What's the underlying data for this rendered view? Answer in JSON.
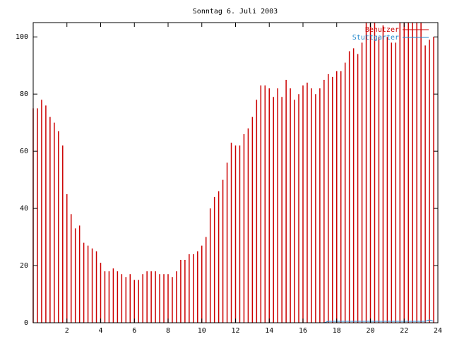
{
  "chart_data": {
    "type": "impulses",
    "title": "Sonntag 6. Juli 2003",
    "x": [
      0,
      0.25,
      0.5,
      0.75,
      1,
      1.25,
      1.5,
      1.75,
      2,
      2.25,
      2.5,
      2.75,
      3,
      3.25,
      3.5,
      3.75,
      4,
      4.25,
      4.5,
      4.75,
      5,
      5.25,
      5.5,
      5.75,
      6,
      6.25,
      6.5,
      6.75,
      7,
      7.25,
      7.5,
      7.75,
      8,
      8.25,
      8.5,
      8.75,
      9,
      9.25,
      9.5,
      9.75,
      10,
      10.25,
      10.5,
      10.75,
      11,
      11.25,
      11.5,
      11.75,
      12,
      12.25,
      12.5,
      12.75,
      13,
      13.25,
      13.5,
      13.75,
      14,
      14.25,
      14.5,
      14.75,
      15,
      15.25,
      15.5,
      15.75,
      16,
      16.25,
      16.5,
      16.75,
      17,
      17.25,
      17.5,
      17.75,
      18,
      18.25,
      18.5,
      18.75,
      19,
      19.25,
      19.5,
      19.75,
      20,
      20.25,
      20.5,
      20.75,
      21,
      21.25,
      21.5,
      21.75,
      22,
      22.25,
      22.5,
      22.75,
      23,
      23.25,
      23.5,
      23.75
    ],
    "series": [
      {
        "name": "Benutzer",
        "color": "#cc0000",
        "style": "impulses",
        "values": [
          75,
          75,
          78,
          76,
          72,
          70,
          67,
          62,
          45,
          38,
          33,
          34,
          28,
          27,
          26,
          25,
          21,
          18,
          18,
          19,
          18,
          17,
          16,
          17,
          15,
          15,
          17,
          18,
          18,
          18,
          17,
          17,
          17,
          16,
          18,
          22,
          22,
          24,
          24,
          25,
          27,
          30,
          40,
          44,
          46,
          50,
          56,
          63,
          62,
          62,
          66,
          68,
          72,
          78,
          83,
          83,
          82,
          79,
          82,
          79,
          85,
          82,
          78,
          80,
          83,
          84,
          82,
          80,
          82,
          85,
          87,
          86,
          88,
          88,
          91,
          95,
          96,
          94,
          98,
          105,
          105,
          105,
          100,
          104,
          100,
          98,
          98,
          105,
          105,
          105,
          105,
          105,
          105,
          97,
          99,
          100
        ]
      },
      {
        "name": "Stuttgarter",
        "color": "#2288cc",
        "style": "lines",
        "values": [
          0,
          0,
          0,
          0,
          0,
          0,
          0,
          0,
          0,
          0,
          0,
          0,
          0,
          0,
          0,
          0,
          0,
          0,
          0,
          0,
          0,
          0,
          0,
          0,
          0,
          0,
          0,
          0,
          0,
          0,
          0,
          0,
          0,
          0,
          0,
          0,
          0,
          0,
          0,
          0,
          0,
          0,
          0,
          0,
          0,
          0,
          0,
          0,
          0,
          0,
          0,
          0,
          0,
          0,
          0,
          0,
          0,
          0,
          0,
          0,
          0,
          0,
          0,
          0,
          0,
          0,
          0,
          0,
          0,
          0,
          0.5,
          0.5,
          0.5,
          0.5,
          0.5,
          0.5,
          0.5,
          0.5,
          0.5,
          0.5,
          0.5,
          0.5,
          0.5,
          0.5,
          0.5,
          0.5,
          0.5,
          0.5,
          0.5,
          0.5,
          0.5,
          0.5,
          0.5,
          0.5,
          1,
          0.5
        ]
      }
    ],
    "xlim": [
      0,
      24
    ],
    "xticks": [
      2,
      4,
      6,
      8,
      10,
      12,
      14,
      16,
      18,
      20,
      22,
      24
    ],
    "ylim": [
      0,
      105
    ],
    "yticks": [
      0,
      20,
      40,
      60,
      80,
      100
    ],
    "legend": "upper right"
  }
}
